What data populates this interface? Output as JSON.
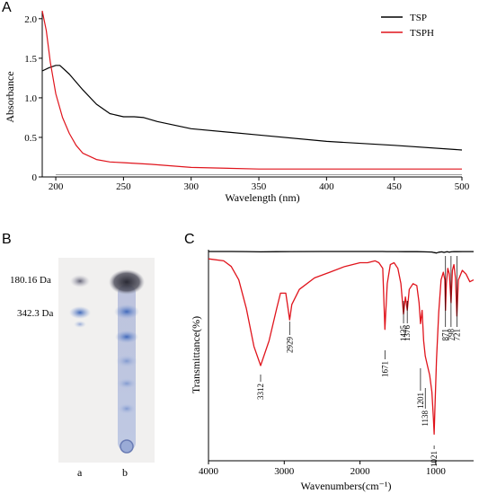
{
  "figure": {
    "panels": {
      "A": "A",
      "B": "B",
      "C": "C"
    }
  },
  "tlc": {
    "markers": [
      "180.16 Da",
      "342.3 Da"
    ],
    "lanes": [
      "a",
      "b"
    ]
  },
  "colors": {
    "tsp": "#000000",
    "tsph": "#e0141c",
    "tlc_background": "#f1f0ef",
    "spot_blue": "#3a64b8",
    "spot_dark": "#2a2a35"
  },
  "chart_data": [
    {
      "type": "line",
      "panel": "A",
      "xlabel": "Wavelength (nm)",
      "ylabel": "Absorbance",
      "xlim": [
        190,
        500
      ],
      "ylim": [
        0,
        2.1
      ],
      "x_ticks": [
        200,
        250,
        300,
        350,
        400,
        450,
        500
      ],
      "y_ticks": [
        0,
        0.5,
        1.0,
        1.5,
        2.0
      ],
      "x_tick_labels": [
        "200",
        "250",
        "300",
        "350",
        "400",
        "450",
        "500"
      ],
      "y_tick_labels": [
        "0",
        "0.5",
        "1.0",
        "1.5",
        "2.0"
      ],
      "legend_position": "top-right",
      "series": [
        {
          "name": "TSP",
          "color": "#000000",
          "x": [
            190,
            195,
            200,
            203,
            210,
            220,
            230,
            240,
            250,
            258,
            265,
            275,
            300,
            350,
            400,
            450,
            500
          ],
          "y": [
            1.34,
            1.38,
            1.41,
            1.41,
            1.3,
            1.1,
            0.92,
            0.8,
            0.76,
            0.76,
            0.75,
            0.7,
            0.61,
            0.53,
            0.45,
            0.4,
            0.34
          ]
        },
        {
          "name": "TSPH",
          "color": "#e0141c",
          "x": [
            190,
            193,
            196,
            200,
            205,
            210,
            215,
            220,
            230,
            240,
            250,
            270,
            300,
            350,
            400,
            500
          ],
          "y": [
            2.1,
            1.85,
            1.45,
            1.05,
            0.75,
            0.55,
            0.4,
            0.3,
            0.22,
            0.19,
            0.18,
            0.16,
            0.12,
            0.1,
            0.1,
            0.1
          ]
        }
      ]
    },
    {
      "type": "line",
      "panel": "C",
      "xlabel": "Wavenumbers(cm⁻¹)",
      "ylabel": "Transmittance(%)",
      "xlim": [
        4000,
        500
      ],
      "x_ticks": [
        4000,
        3000,
        2000,
        1000
      ],
      "x_tick_labels": [
        "4000",
        "3000",
        "2000",
        "1000"
      ],
      "peak_annotations": [
        "3312",
        "2929",
        "1671",
        "1425",
        "1376",
        "1201",
        "1138",
        "1021",
        "871",
        "798",
        "721"
      ],
      "series": [
        {
          "name": "",
          "color": "#000000",
          "x": [
            4000,
            3700,
            3500,
            3312,
            3100,
            2929,
            2500,
            2000,
            1700,
            1650,
            1500,
            1400,
            1250,
            1150,
            1100,
            1050,
            1021,
            990,
            960,
            920,
            890,
            871,
            850,
            820,
            798,
            760,
            721,
            650,
            500
          ],
          "y": [
            1.0,
            1.0,
            0.99,
            0.97,
            0.98,
            0.99,
            1.0,
            1.0,
            1.0,
            0.99,
            0.99,
            0.98,
            0.98,
            0.97,
            0.96,
            0.95,
            0.9,
            0.86,
            0.93,
            0.97,
            0.92,
            0.95,
            0.98,
            0.93,
            0.97,
            0.99,
            0.98,
            0.99,
            0.99
          ]
        },
        {
          "name": "",
          "color": "#e0141c",
          "x": [
            4000,
            3800,
            3700,
            3600,
            3500,
            3400,
            3312,
            3200,
            3100,
            3050,
            2980,
            2950,
            2929,
            2900,
            2800,
            2600,
            2400,
            2200,
            2000,
            1900,
            1800,
            1750,
            1700,
            1671,
            1640,
            1600,
            1550,
            1500,
            1460,
            1425,
            1400,
            1376,
            1350,
            1300,
            1250,
            1220,
            1201,
            1180,
            1160,
            1138,
            1110,
            1080,
            1050,
            1030,
            1021,
            1010,
            990,
            960,
            930,
            900,
            880,
            871,
            860,
            840,
            820,
            798,
            780,
            760,
            740,
            721,
            700,
            650,
            600,
            550,
            500
          ],
          "y": [
            0.98,
            0.97,
            0.94,
            0.87,
            0.72,
            0.52,
            0.42,
            0.55,
            0.72,
            0.8,
            0.8,
            0.72,
            0.66,
            0.74,
            0.82,
            0.88,
            0.91,
            0.94,
            0.96,
            0.96,
            0.97,
            0.96,
            0.93,
            0.61,
            0.85,
            0.95,
            0.96,
            0.93,
            0.85,
            0.69,
            0.78,
            0.71,
            0.82,
            0.85,
            0.84,
            0.75,
            0.64,
            0.71,
            0.55,
            0.47,
            0.42,
            0.37,
            0.28,
            0.14,
            0.06,
            0.2,
            0.45,
            0.7,
            0.87,
            0.91,
            0.87,
            0.71,
            0.85,
            0.93,
            0.9,
            0.75,
            0.92,
            0.95,
            0.88,
            0.68,
            0.87,
            0.92,
            0.9,
            0.86,
            0.87
          ]
        }
      ]
    }
  ]
}
